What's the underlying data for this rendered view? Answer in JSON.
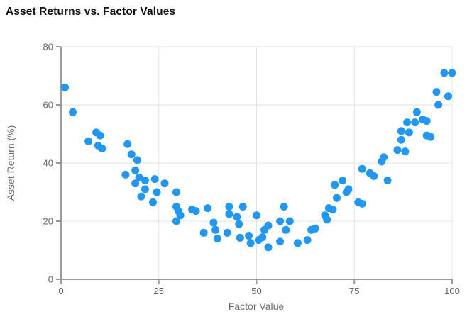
{
  "page": {
    "background": "#ffffff"
  },
  "chart_data": {
    "type": "scatter",
    "title": "Asset Returns vs. Factor Values",
    "xlabel": "Factor Value",
    "ylabel": "Asset Return (%)",
    "xlim": [
      0,
      100
    ],
    "ylim": [
      0,
      80
    ],
    "xticks": [
      0,
      25,
      50,
      75,
      100
    ],
    "yticks": [
      0,
      20,
      40,
      60,
      80
    ],
    "grid": true,
    "legend": false,
    "series_name": "Asset Return (%)",
    "point_color": "#2196F3",
    "point_radius": 5.5,
    "points": [
      [
        1,
        66
      ],
      [
        3,
        57.5
      ],
      [
        7,
        47.5
      ],
      [
        9,
        50.5
      ],
      [
        10,
        49.5
      ],
      [
        9.5,
        46
      ],
      [
        10.5,
        45
      ],
      [
        17,
        46.5
      ],
      [
        18,
        43
      ],
      [
        19.5,
        41
      ],
      [
        16.5,
        36
      ],
      [
        19,
        37.5
      ],
      [
        20,
        35
      ],
      [
        19,
        33
      ],
      [
        21.5,
        34
      ],
      [
        24,
        34.5
      ],
      [
        26.5,
        33
      ],
      [
        21.5,
        31
      ],
      [
        24.5,
        30
      ],
      [
        20.5,
        28.5
      ],
      [
        23.5,
        26.5
      ],
      [
        29.5,
        30
      ],
      [
        29.5,
        25
      ],
      [
        30,
        23.5
      ],
      [
        30.5,
        22
      ],
      [
        29.5,
        20
      ],
      [
        33.5,
        24
      ],
      [
        34.5,
        23.5
      ],
      [
        37.5,
        24.5
      ],
      [
        36.5,
        16
      ],
      [
        39,
        19.5
      ],
      [
        39.5,
        17
      ],
      [
        40,
        14
      ],
      [
        42.5,
        16
      ],
      [
        43,
        25
      ],
      [
        43,
        22.5
      ],
      [
        45,
        21.5
      ],
      [
        45.5,
        19
      ],
      [
        46.5,
        25
      ],
      [
        45.8,
        14.3
      ],
      [
        48,
        15
      ],
      [
        48.5,
        12.5
      ],
      [
        50,
        22
      ],
      [
        50.5,
        13.5
      ],
      [
        51.5,
        14.5
      ],
      [
        52,
        17
      ],
      [
        53,
        18.5
      ],
      [
        53,
        11
      ],
      [
        56,
        13
      ],
      [
        56,
        20
      ],
      [
        57,
        25
      ],
      [
        57.5,
        17
      ],
      [
        58.5,
        20
      ],
      [
        60.5,
        12.5
      ],
      [
        63,
        13.5
      ],
      [
        64,
        17
      ],
      [
        65,
        17.5
      ],
      [
        67.5,
        22
      ],
      [
        68,
        20.5
      ],
      [
        68.5,
        24.5
      ],
      [
        69.5,
        24
      ],
      [
        70,
        32.5
      ],
      [
        70.5,
        28
      ],
      [
        72,
        34
      ],
      [
        73,
        30
      ],
      [
        73.5,
        31
      ],
      [
        76,
        26.5
      ],
      [
        77,
        26
      ],
      [
        77,
        38
      ],
      [
        79,
        36.5
      ],
      [
        80,
        35.5
      ],
      [
        82,
        40.5
      ],
      [
        82.5,
        42
      ],
      [
        83.5,
        34
      ],
      [
        86,
        44.5
      ],
      [
        88,
        44
      ],
      [
        87,
        51
      ],
      [
        87,
        48
      ],
      [
        89,
        50.5
      ],
      [
        88.5,
        54
      ],
      [
        90.5,
        54
      ],
      [
        91,
        57.5
      ],
      [
        92.5,
        55
      ],
      [
        93.5,
        54.5
      ],
      [
        93.5,
        49.5
      ],
      [
        94.5,
        49
      ],
      [
        96,
        64.5
      ],
      [
        96.5,
        60
      ],
      [
        99,
        63
      ],
      [
        98,
        71
      ],
      [
        100,
        71
      ]
    ],
    "colors": {
      "point": "#2196F3",
      "gridline": "#e3e3e3",
      "axisline": "#9b9b9b",
      "tick_label": "#666666",
      "axis_title": "#6e6e6e",
      "title": "#121212"
    }
  }
}
